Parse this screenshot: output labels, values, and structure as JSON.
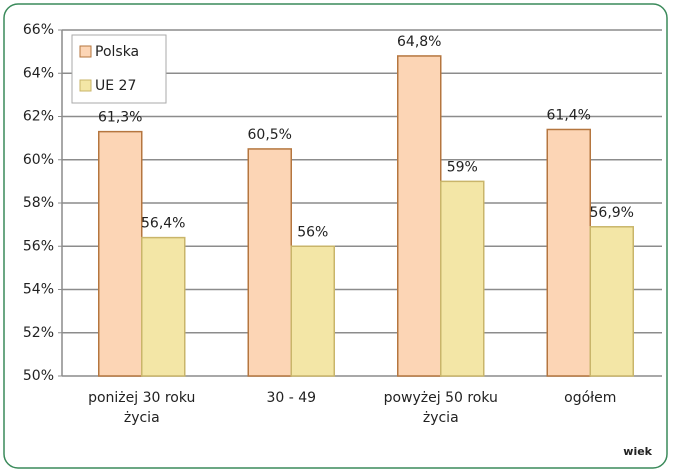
{
  "chart_data": {
    "type": "bar",
    "x_label": "wiek",
    "categories": [
      "poniżej 30 roku życia",
      "30 - 49",
      "powyżej 50 roku życia",
      "ogółem"
    ],
    "series": [
      {
        "name": "Polska",
        "color": "#fcd5b5",
        "values": [
          61.3,
          60.5,
          64.8,
          61.4
        ],
        "value_labels": [
          "61,3%",
          "60,5%",
          "64,8%",
          "61,4%"
        ]
      },
      {
        "name": "UE 27",
        "color": "#f3e6a6",
        "values": [
          56.4,
          56,
          59,
          56.9
        ],
        "value_labels": [
          "56,4%",
          "56%",
          "59%",
          "56,9%"
        ]
      }
    ],
    "ylim": [
      50,
      66
    ],
    "yticks": [
      {
        "value": 50,
        "label": "50%"
      },
      {
        "value": 52,
        "label": "52%"
      },
      {
        "value": 54,
        "label": "54%"
      },
      {
        "value": 56,
        "label": "56%"
      },
      {
        "value": 58,
        "label": "58%"
      },
      {
        "value": 60,
        "label": "60%"
      },
      {
        "value": 62,
        "label": "62%"
      },
      {
        "value": 64,
        "label": "64%"
      },
      {
        "value": 66,
        "label": "66%"
      }
    ],
    "grid": true,
    "legend": "upper left"
  }
}
